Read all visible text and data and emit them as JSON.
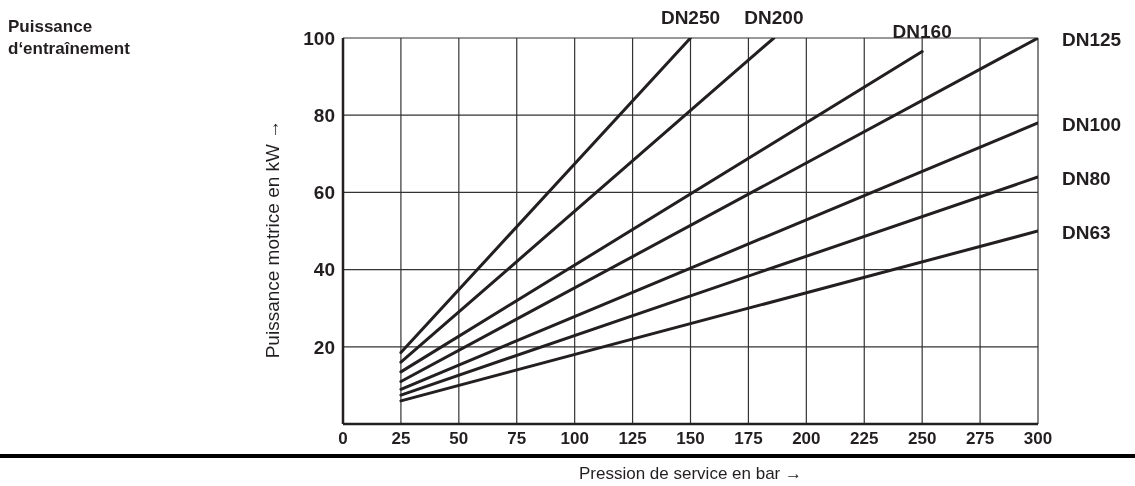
{
  "chart_data": {
    "type": "line",
    "title": "Puissance d‘entraînement",
    "xlabel": "Pression de service en bar →",
    "ylabel": "Puissance motrice en kW →",
    "xlim": [
      0,
      300
    ],
    "xticks": [
      0,
      25,
      50,
      75,
      100,
      125,
      150,
      175,
      200,
      225,
      250,
      275,
      300
    ],
    "ylim": [
      0,
      100
    ],
    "yticks": [
      {
        "value": 0,
        "label": null
      },
      20,
      40,
      60,
      80,
      100
    ],
    "grid": true,
    "marker": "none",
    "line_style": "solid",
    "series": [
      {
        "name": "DN250",
        "color": "#231f20",
        "x": [
          25,
          150
        ],
        "values": [
          18.5,
          100
        ]
      },
      {
        "name": "DN200",
        "color": "#231f20",
        "x": [
          25,
          186
        ],
        "values": [
          16,
          100
        ]
      },
      {
        "name": "DN160",
        "color": "#231f20",
        "x": [
          25,
          250
        ],
        "values": [
          13.5,
          96.5
        ]
      },
      {
        "name": "DN125",
        "color": "#231f20",
        "x": [
          25,
          300
        ],
        "values": [
          11,
          100
        ]
      },
      {
        "name": "DN100",
        "color": "#231f20",
        "x": [
          25,
          300
        ],
        "values": [
          9,
          78
        ]
      },
      {
        "name": "DN80",
        "color": "#231f20",
        "x": [
          25,
          300
        ],
        "values": [
          7.5,
          64
        ]
      },
      {
        "name": "DN63",
        "color": "#231f20",
        "x": [
          25,
          300
        ],
        "values": [
          6,
          50
        ]
      }
    ]
  }
}
